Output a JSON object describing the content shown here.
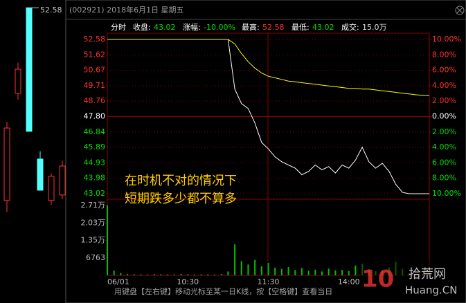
{
  "window": {
    "title": "(002921) 2018年6月1日 星期五"
  },
  "info": {
    "label": "分时",
    "fields": [
      {
        "label": "收盘:",
        "value": "43.02",
        "color": "#00e000"
      },
      {
        "label": "涨幅:",
        "value": "-10.00%",
        "color": "#00e000"
      },
      {
        "label": "最高:",
        "value": "52.58",
        "color": "#ff3232"
      },
      {
        "label": "最低:",
        "value": "43.02",
        "color": "#00e000"
      },
      {
        "label": "成交:",
        "value": "15.0万",
        "color": "#e0e0e0"
      }
    ]
  },
  "chart_data": [
    {
      "type": "line",
      "categories": [
        "06/01",
        null,
        null,
        null,
        null,
        null,
        null,
        null,
        null,
        null,
        null,
        null,
        "10:30",
        null,
        null,
        null,
        null,
        null,
        null,
        null,
        null,
        null,
        null,
        null,
        "11:30",
        null,
        null,
        null,
        null,
        null,
        null,
        null,
        null,
        null,
        null,
        null,
        "14:00",
        null,
        null,
        null,
        null,
        null,
        null,
        null,
        null,
        null,
        null,
        null,
        null
      ],
      "series": [
        {
          "color": "#ffffff",
          "values": [
            52.58,
            52.58,
            52.58,
            52.58,
            52.58,
            52.58,
            52.58,
            52.58,
            52.58,
            52.58,
            52.58,
            52.58,
            52.58,
            52.58,
            52.58,
            52.58,
            52.58,
            52.58,
            52.58,
            49.5,
            48.6,
            48.3,
            47.4,
            46.2,
            45.8,
            45.3,
            45.0,
            44.8,
            44.6,
            44.2,
            44.4,
            44.8,
            44.5,
            44.7,
            44.3,
            44.8,
            44.6,
            45.1,
            45.9,
            45.0,
            44.6,
            44.9,
            44.4,
            43.6,
            43.1,
            43.02,
            43.02,
            43.02,
            43.02
          ]
        },
        {
          "color": "#ffff00",
          "values": [
            52.58,
            52.58,
            52.58,
            52.58,
            52.58,
            52.58,
            52.58,
            52.58,
            52.58,
            52.58,
            52.58,
            52.58,
            52.58,
            52.58,
            52.58,
            52.58,
            52.58,
            52.58,
            52.58,
            52.3,
            51.7,
            51.2,
            50.8,
            50.5,
            50.3,
            50.2,
            50.1,
            50.0,
            49.95,
            49.9,
            49.85,
            49.8,
            49.75,
            49.7,
            49.65,
            49.6,
            49.55,
            49.55,
            49.5,
            49.5,
            49.45,
            49.4,
            49.35,
            49.3,
            49.25,
            49.2,
            49.15,
            49.12,
            49.1
          ]
        }
      ],
      "ylim": [
        43.02,
        52.58
      ],
      "yticks": [
        52.58,
        51.62,
        50.67,
        49.71,
        48.76,
        {
          "value": 47.8,
          "label": "47.80"
        },
        46.84,
        45.89,
        44.93,
        43.98,
        43.02
      ],
      "y2lim": [
        -10,
        10
      ],
      "y2ticks": [
        {
          "value": 10,
          "label": "10.00%"
        },
        {
          "value": 8,
          "label": "8.00%"
        },
        {
          "value": 6,
          "label": "6.00%"
        },
        {
          "value": 4,
          "label": "4.00%"
        },
        {
          "value": 2,
          "label": "2.00%"
        },
        {
          "value": 0,
          "label": "0.00%"
        },
        {
          "value": -2,
          "label": "2.00%"
        },
        {
          "value": -4,
          "label": "4.00%"
        },
        {
          "value": -6,
          "label": "6.00%"
        },
        {
          "value": -8,
          "label": "8.00%"
        },
        {
          "value": -10,
          "label": "10.00%"
        }
      ],
      "grid": true
    },
    {
      "type": "bar",
      "color": "#00c000",
      "values": [
        27100,
        1800,
        900,
        500,
        400,
        350,
        300,
        450,
        400,
        300,
        350,
        500,
        400,
        300,
        350,
        400,
        300,
        450,
        1500,
        12000,
        5500,
        4200,
        6000,
        3500,
        4800,
        3000,
        2500,
        3200,
        2000,
        2800,
        1800,
        2200,
        1500,
        2600,
        1900,
        2100,
        1700,
        3800,
        4500,
        2400,
        1600,
        2000,
        3000,
        5200,
        2500,
        800,
        600,
        500,
        900
      ],
      "ylim": [
        0,
        27100
      ],
      "yticks": [
        {
          "value": 27100,
          "label": "2.71万"
        },
        {
          "value": 20300,
          "label": "2.03万"
        },
        {
          "value": 13500,
          "label": "1.35万"
        },
        6763
      ]
    },
    {
      "type": "candlestick",
      "up_color": "#ff3232",
      "down_color": "#54ffff",
      "ylim": [
        38,
        53
      ],
      "candles": [
        {
          "open": 42.13,
          "high": 46.4,
          "low": 41.5,
          "close": 46.06
        },
        {
          "open": 47.94,
          "high": 49.6,
          "low": 47.6,
          "close": 49.25
        },
        {
          "open": 52.58,
          "high": 52.58,
          "low": 45.88,
          "close": 45.88
        },
        {
          "open": 44.38,
          "high": 44.8,
          "low": 42.69,
          "close": 42.69
        },
        {
          "open": 42.13,
          "high": 43.6,
          "low": 41.9,
          "close": 43.44
        },
        {
          "open": 42.43,
          "high": 44.3,
          "low": 42.2,
          "close": 44.0
        }
      ]
    }
  ],
  "overlay_text": [
    "在时机不对的情况下",
    "短期跌多少都不算多"
  ],
  "status_text": "用键盘【左右键】移动光标至某一日K线，按【空格键】查看当日",
  "watermark": {
    "number": "10",
    "name": "拾荒网",
    "domain": "Huang.CN"
  }
}
